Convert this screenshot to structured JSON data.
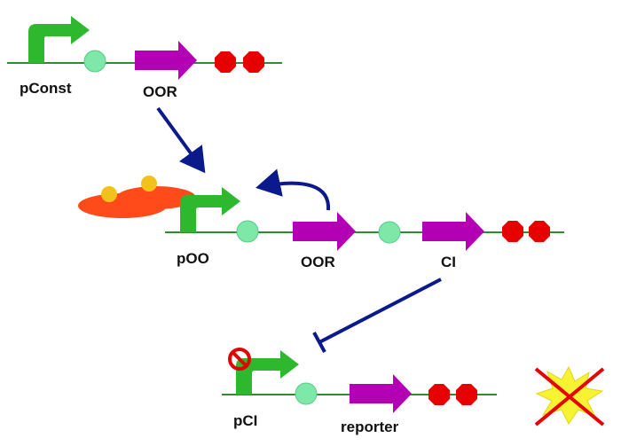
{
  "labels": {
    "promoter_const": "pConst",
    "gene_oor_1": "OOR",
    "promoter_poo": "pOO",
    "gene_oor_2": "OOR",
    "gene_ci": "CI",
    "promoter_pci": "pCI",
    "gene_reporter": "reporter"
  },
  "colors": {
    "dna": "#2e8b2e",
    "promoter": "#2db82d",
    "rbs": "#7de8a8",
    "gene": "#b400b4",
    "terminator": "#e60000",
    "arrow": "#0a1a8c",
    "repressor_body": "#ff4a1a",
    "repressor_dot": "#f2c21a",
    "block_sign": "#e60000",
    "star": "#f6f432",
    "cross": "#e60000"
  },
  "icons": {
    "promoter": "bent-arrow-promoter-icon",
    "rbs": "circle-rbs-icon",
    "gene": "block-arrow-gene-icon",
    "terminator": "octagon-terminator-icon",
    "repressor": "oval-repressor-complex-icon",
    "blocked": "prohibition-sign-icon",
    "no_output": "crossed-star-icon"
  }
}
